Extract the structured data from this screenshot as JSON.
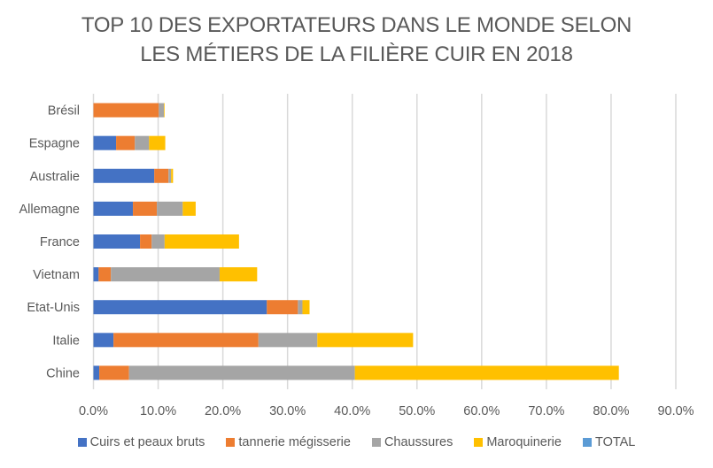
{
  "chart_data": {
    "type": "bar",
    "orientation": "horizontal",
    "stacked": true,
    "title": "TOP 10 DES EXPORTATEURS DANS LE MONDE SELON LES MÉTIERS DE LA FILIÈRE CUIR EN 2018",
    "title_lines": [
      "TOP 10 DES EXPORTATEURS DANS LE MONDE SELON",
      "LES MÉTIERS DE LA FILIÈRE CUIR EN 2018"
    ],
    "xlabel": "",
    "ylabel": "",
    "categories": [
      "Brésil",
      "Espagne",
      "Australie",
      "Allemagne",
      "France",
      "Vietnam",
      "Etat-Unis",
      "Italie",
      "Chine"
    ],
    "series": [
      {
        "name": "Cuirs et peaux bruts",
        "color": "#4472C4",
        "values": [
          0.0,
          3.5,
          9.4,
          6.1,
          7.2,
          0.8,
          26.8,
          3.1,
          0.9
        ]
      },
      {
        "name": "tannerie mégisserie",
        "color": "#ED7D31",
        "values": [
          10.1,
          2.9,
          2.2,
          3.7,
          1.8,
          1.9,
          4.8,
          22.4,
          4.6
        ]
      },
      {
        "name": "Chaussures",
        "color": "#A5A5A5",
        "values": [
          0.8,
          2.2,
          0.4,
          4.0,
          2.0,
          16.8,
          0.7,
          9.1,
          34.9
        ]
      },
      {
        "name": "Maroquinerie",
        "color": "#FFC000",
        "values": [
          0.1,
          2.5,
          0.3,
          2.0,
          11.5,
          5.8,
          1.1,
          14.8,
          40.8
        ]
      },
      {
        "name": "TOTAL",
        "color": "#5B9BD5",
        "values": [
          0,
          0,
          0,
          0,
          0,
          0,
          0,
          0,
          0
        ]
      }
    ],
    "xlim": [
      0,
      90
    ],
    "xticks": [
      0,
      10,
      20,
      30,
      40,
      50,
      60,
      70,
      80,
      90
    ],
    "xtick_labels": [
      "0.0%",
      "10.0%",
      "20.0%",
      "30.0%",
      "40.0%",
      "50.0%",
      "60.0%",
      "70.0%",
      "80.0%",
      "90.0%"
    ],
    "value_unit": "%",
    "grid": "vertical",
    "legend_position": "bottom"
  },
  "colors": {
    "title": "#595959",
    "text": "#595959",
    "grid": "#D9D9D9"
  }
}
